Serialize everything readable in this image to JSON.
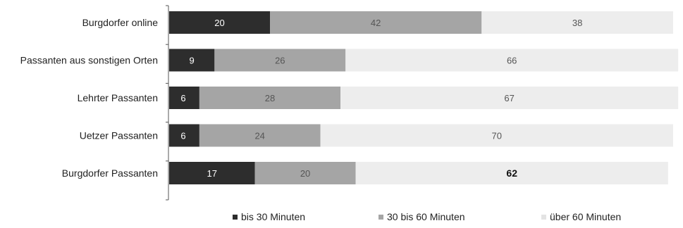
{
  "chart_data": {
    "type": "bar",
    "orientation": "horizontal",
    "stacked": true,
    "categories": [
      "Burgdorfer online",
      "Passanten aus sonstigen Orten",
      "Lehrter Passanten",
      "Uetzer Passanten",
      "Burgdorfer Passanten"
    ],
    "series": [
      {
        "name": "bis 30 Minuten",
        "color": "#2d2d2d",
        "label_color": "#ffffff",
        "values": [
          20,
          9,
          6,
          6,
          17
        ]
      },
      {
        "name": "30 bis 60 Minuten",
        "color": "#a5a5a5",
        "label_color": "#555555",
        "values": [
          42,
          26,
          28,
          24,
          20
        ]
      },
      {
        "name": "über 60 Minuten",
        "color": "#ededed",
        "label_color": "#555555",
        "values": [
          38,
          66,
          67,
          70,
          62
        ]
      }
    ],
    "xlim": [
      0,
      100
    ],
    "grid": false,
    "legend_position": "bottom"
  }
}
